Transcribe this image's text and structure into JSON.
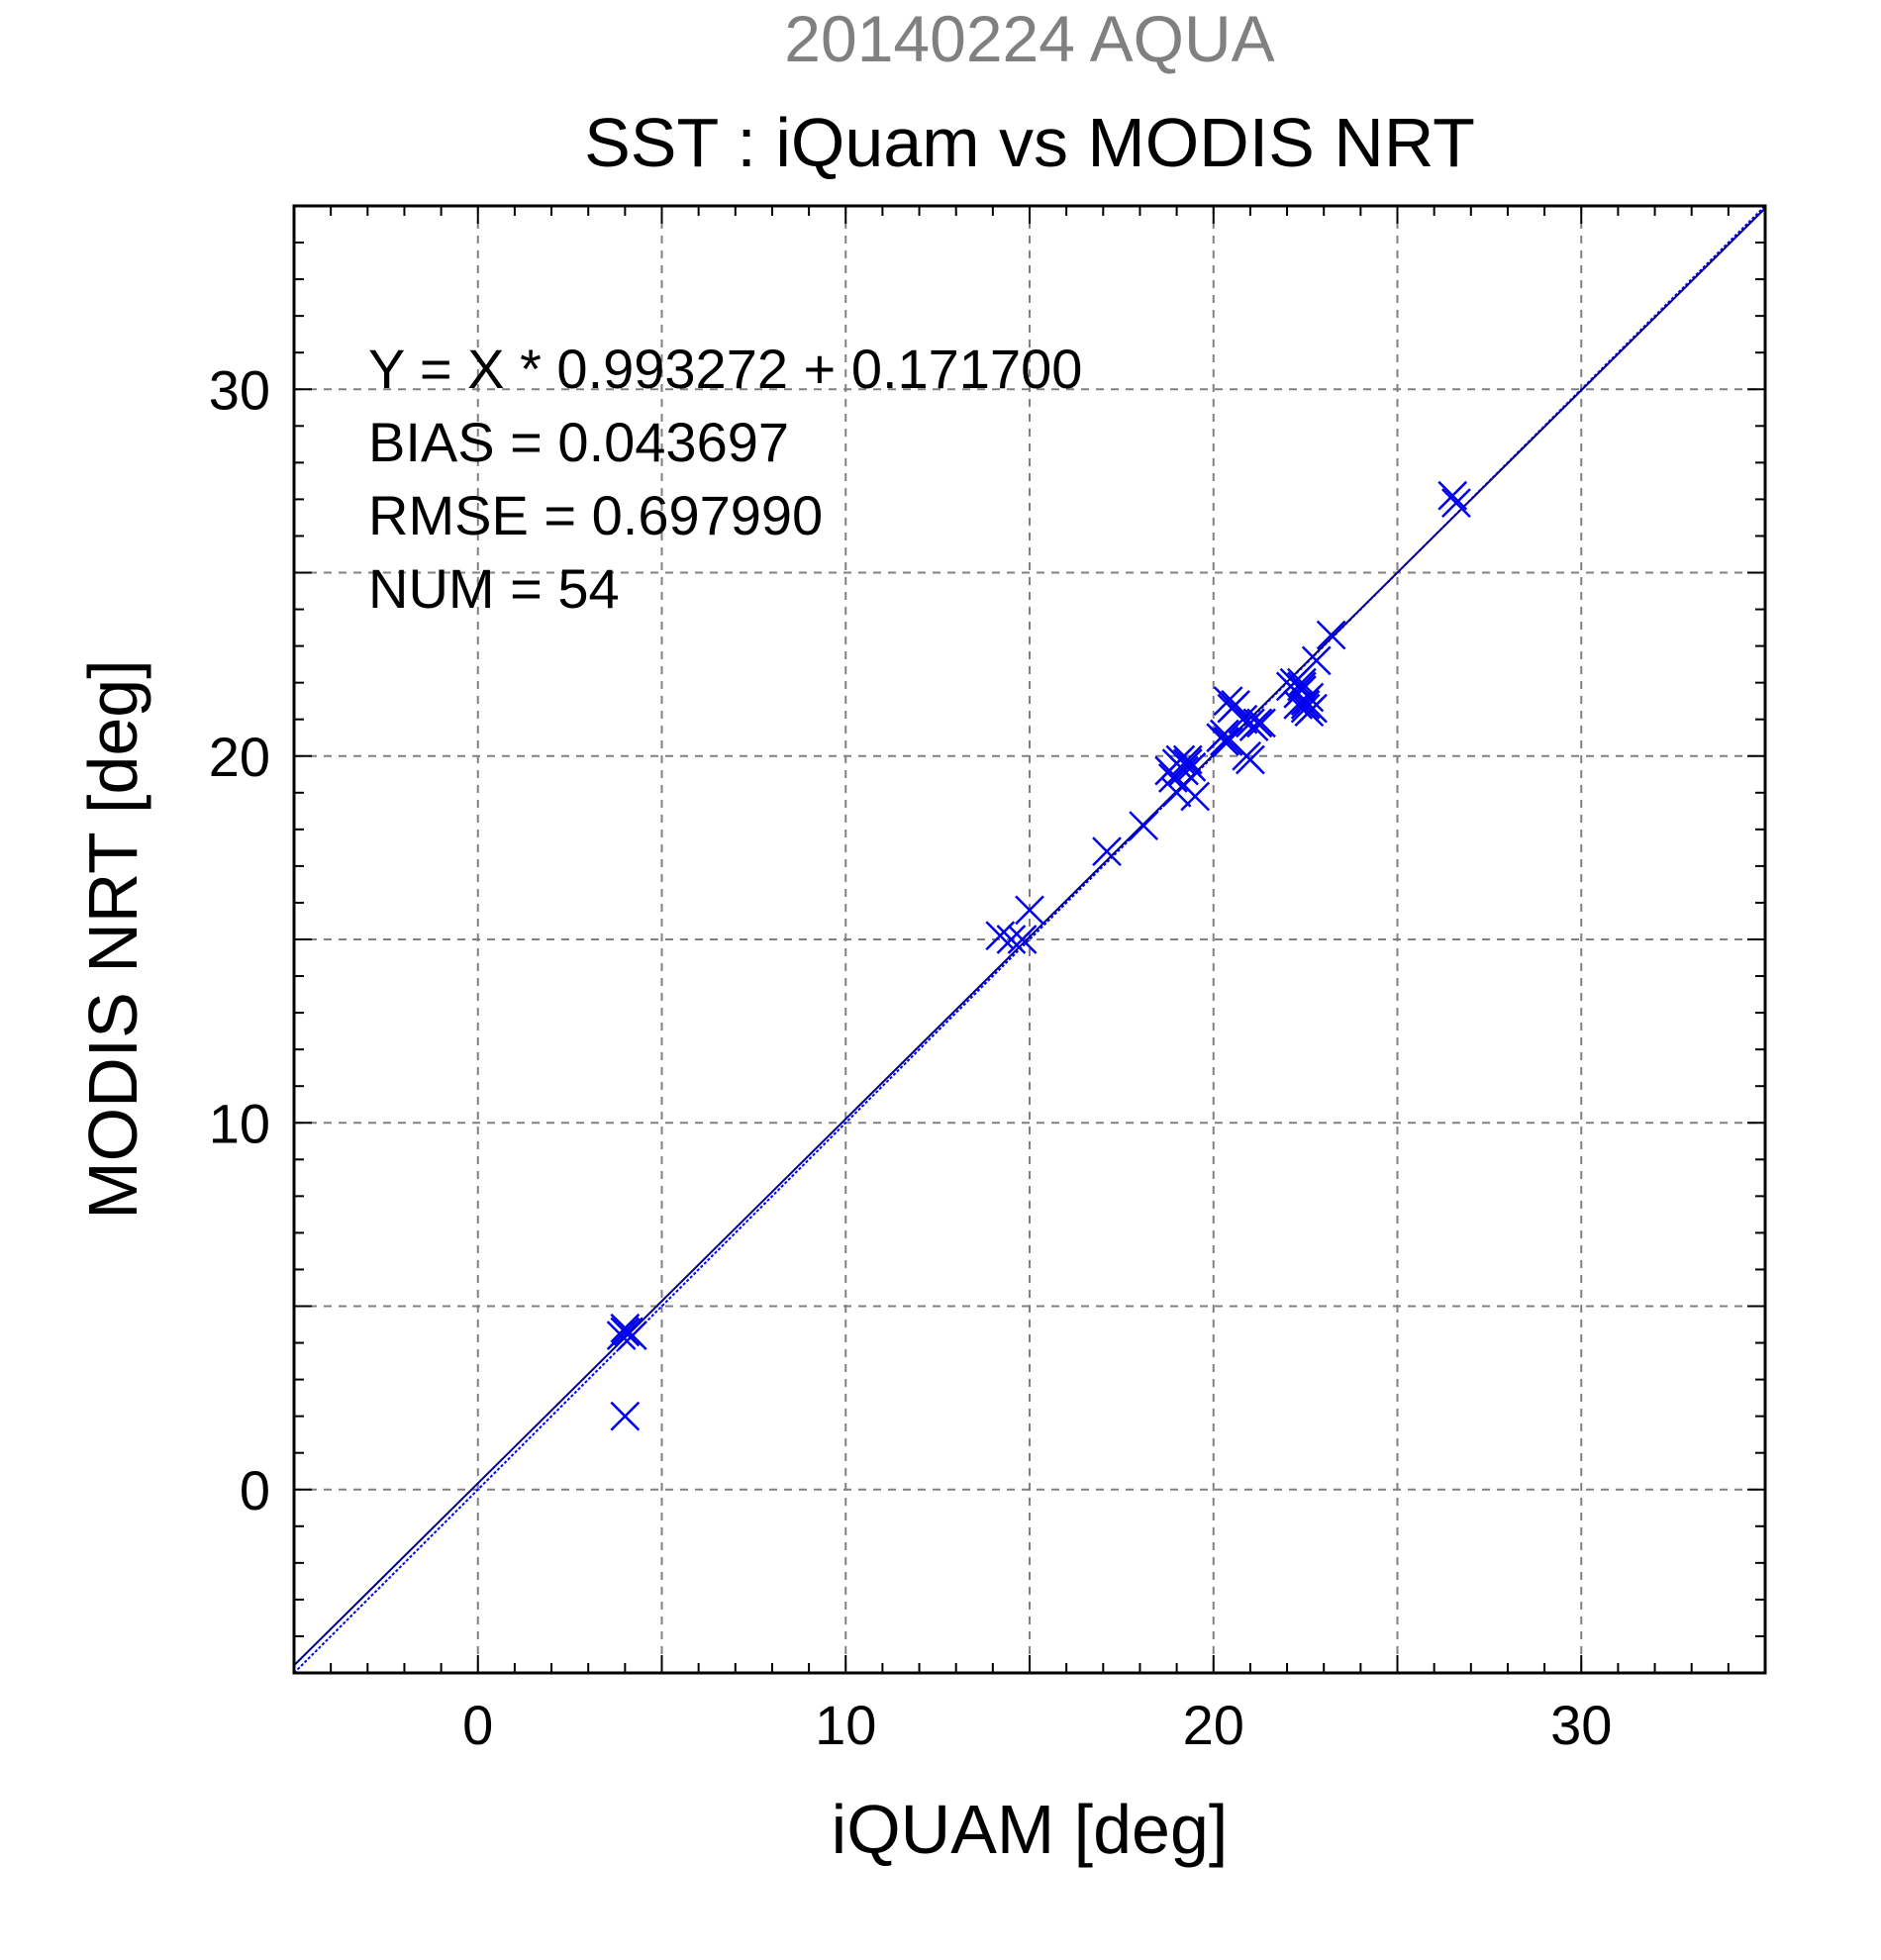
{
  "chart_data": {
    "type": "scatter",
    "supertitle": "20140224 AQUA",
    "title": "SST : iQuam vs MODIS NRT",
    "xlabel": "iQUAM [deg]",
    "ylabel": "MODIS NRT [deg]",
    "xlim": [
      -5,
      35
    ],
    "ylim": [
      -5,
      35
    ],
    "xticks": [
      0,
      10,
      20,
      30
    ],
    "yticks": [
      0,
      10,
      20,
      30
    ],
    "xtick_labels": [
      "0",
      "10",
      "20",
      "30"
    ],
    "ytick_labels": [
      "0",
      "10",
      "20",
      "30"
    ],
    "grid": true,
    "grid_step": 5,
    "minor_tick_step": 1,
    "stats": [
      "Y = X * 0.993272 + 0.171700",
      "BIAS = 0.043697",
      "RMSE = 0.697990",
      "NUM = 54"
    ],
    "fit": {
      "slope": 0.993272,
      "intercept": 0.1717
    },
    "colors": {
      "points": "#0000ee",
      "fit_line": "#00008b",
      "identity_line": "#0000ff",
      "supertitle": "#808080",
      "grid": "#808080"
    },
    "marker": "x",
    "points": [
      [
        4.0,
        4.4
      ],
      [
        4.1,
        4.3
      ],
      [
        3.9,
        4.2
      ],
      [
        4.0,
        4.3
      ],
      [
        4.2,
        4.2
      ],
      [
        4.0,
        2.0
      ],
      [
        14.2,
        15.1
      ],
      [
        14.5,
        15.0
      ],
      [
        15.0,
        15.8
      ],
      [
        14.8,
        15.0
      ],
      [
        17.1,
        17.4
      ],
      [
        18.1,
        18.1
      ],
      [
        18.8,
        19.6
      ],
      [
        18.9,
        19.4
      ],
      [
        19.0,
        19.8
      ],
      [
        19.1,
        19.9
      ],
      [
        19.2,
        19.6
      ],
      [
        19.3,
        19.8
      ],
      [
        19.0,
        19.0
      ],
      [
        19.2,
        19.2
      ],
      [
        19.5,
        18.9
      ],
      [
        19.4,
        19.7
      ],
      [
        20.2,
        20.5
      ],
      [
        20.3,
        20.6
      ],
      [
        20.4,
        20.4
      ],
      [
        20.4,
        21.5
      ],
      [
        20.5,
        21.3
      ],
      [
        20.6,
        21.4
      ],
      [
        20.8,
        21.0
      ],
      [
        21.0,
        20.9
      ],
      [
        21.1,
        20.8
      ],
      [
        21.2,
        20.9
      ],
      [
        21.3,
        20.9
      ],
      [
        20.9,
        20.0
      ],
      [
        21.0,
        19.9
      ],
      [
        22.1,
        21.9
      ],
      [
        22.2,
        22.0
      ],
      [
        22.3,
        21.7
      ],
      [
        22.4,
        21.8
      ],
      [
        22.5,
        21.5
      ],
      [
        22.5,
        21.3
      ],
      [
        22.6,
        21.2
      ],
      [
        22.3,
        21.4
      ],
      [
        22.4,
        21.9
      ],
      [
        22.6,
        21.6
      ],
      [
        22.5,
        21.4
      ],
      [
        22.7,
        21.3
      ],
      [
        22.8,
        22.6
      ],
      [
        23.2,
        23.3
      ],
      [
        26.5,
        27.1
      ],
      [
        26.6,
        26.9
      ],
      [
        19.3,
        19.9
      ],
      [
        20.3,
        20.4
      ],
      [
        22.4,
        22.0
      ]
    ]
  }
}
